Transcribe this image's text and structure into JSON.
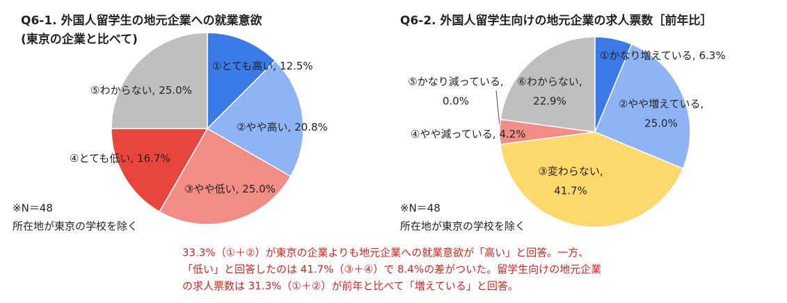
{
  "chart_data": [
    {
      "type": "pie",
      "title": "Q6-1. 外国人留学生の地元企業への就業意欲",
      "subtitle": "(東京の企業と比べて)",
      "categories": [
        "①とても高い,",
        "②やや高い,",
        "③やや低い,",
        "④とても低い,",
        "⑤わからない,"
      ],
      "values": [
        12.5,
        20.8,
        25.0,
        16.7,
        25.0
      ],
      "value_labels": [
        "12.5%",
        "20.8%",
        "25.0%",
        "16.7%",
        "25.0%"
      ],
      "colors": [
        "#3b7be8",
        "#8eb4f6",
        "#f28d85",
        "#e8453c",
        "#bfbfbf"
      ],
      "notes": [
        "※N＝48",
        "所在地が東京の学校を除く"
      ]
    },
    {
      "type": "pie",
      "title": "Q6-2. 外国人留学生向けの地元企業の求人票数［前年比］",
      "categories": [
        "①かなり増えている,",
        "②やや増えている,",
        "③変わらない,",
        "④やや減っている,",
        "⑤かなり減っている,",
        "⑥わからない,"
      ],
      "values": [
        6.3,
        25.0,
        41.7,
        4.2,
        0.0,
        22.9
      ],
      "value_labels": [
        "6.3%",
        "25.0%",
        "41.7%",
        "4.2%",
        "0.0%",
        "22.9%"
      ],
      "colors": [
        "#3b7be8",
        "#8eb4f6",
        "#fdd86a",
        "#f28d85",
        "#e8453c",
        "#bfbfbf"
      ],
      "notes": [
        "※N＝48",
        "所在地が東京の学校を除く"
      ]
    }
  ],
  "annotation": [
    "33.3%（①＋②）が東京の企業よりも地元企業への就業意欲が「高い」と回答。一方、",
    "「低い」と回答したのは 41.7%（③＋④）で 8.4%の差がついた。留学生向けの地元企業",
    "の求人票数は 31.3%（①＋②）が前年と比べて「増えている」と回答。"
  ]
}
